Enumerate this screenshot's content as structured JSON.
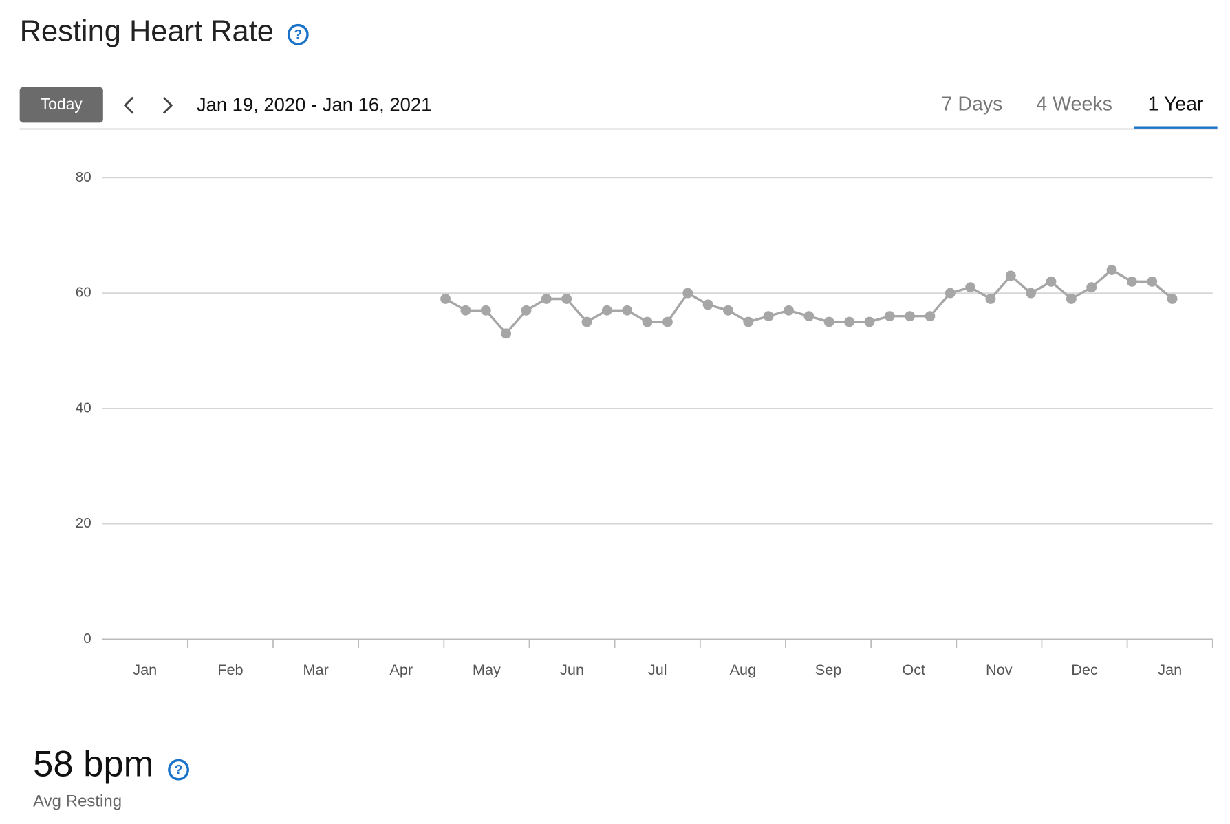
{
  "header": {
    "title": "Resting Heart Rate"
  },
  "controls": {
    "today": "Today",
    "date_range": "Jan 19, 2020 - Jan 16, 2021",
    "tabs": [
      "7 Days",
      "4 Weeks",
      "1 Year"
    ],
    "active_tab": 2
  },
  "chart_data": {
    "type": "line",
    "month_labels": [
      "Jan",
      "Feb",
      "Mar",
      "Apr",
      "May",
      "Jun",
      "Jul",
      "Aug",
      "Sep",
      "Oct",
      "Nov",
      "Dec",
      "Jan"
    ],
    "xlim": [
      0,
      55
    ],
    "values": [
      null,
      null,
      null,
      null,
      null,
      null,
      null,
      null,
      null,
      null,
      null,
      null,
      null,
      null,
      null,
      null,
      null,
      59,
      57,
      57,
      53,
      57,
      59,
      59,
      55,
      57,
      57,
      55,
      55,
      60,
      58,
      57,
      55,
      56,
      57,
      56,
      55,
      55,
      55,
      56,
      56,
      56,
      60,
      61,
      59,
      63,
      60,
      62,
      59,
      61,
      64,
      62,
      62,
      59
    ],
    "color": "#a6a6a6",
    "ylim": [
      0,
      80
    ],
    "yticks": [
      0,
      20,
      40,
      60,
      80
    ],
    "grid": true
  },
  "summary": {
    "value": "58 bpm",
    "label": "Avg Resting"
  }
}
